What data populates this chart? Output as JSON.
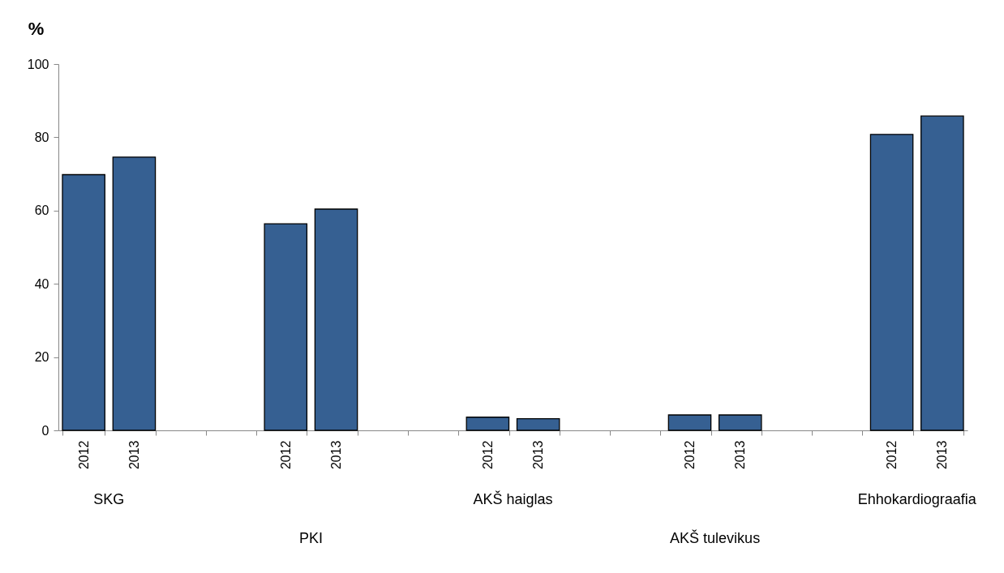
{
  "chart_data": {
    "type": "bar",
    "ylabel": "%",
    "categories": [
      "2012",
      "2013",
      null,
      null,
      "2012",
      "2013",
      null,
      null,
      "2012",
      "2013",
      null,
      null,
      "2012",
      "2013",
      null,
      null,
      "2012",
      "2013"
    ],
    "values": [
      69.8,
      74.6,
      null,
      null,
      56.4,
      60.4,
      null,
      null,
      3.6,
      3.2,
      null,
      null,
      4.2,
      4.2,
      null,
      null,
      80.8,
      85.8
    ],
    "color": "#366092",
    "ylim": [
      0,
      100
    ],
    "yticks": [
      0,
      20,
      40,
      60,
      80,
      100
    ],
    "grid": false,
    "annotations": [
      "SKG",
      "PKI",
      "AKŠ haiglas",
      "AKŠ tulevikus",
      "Ehhokardiograafia"
    ]
  }
}
